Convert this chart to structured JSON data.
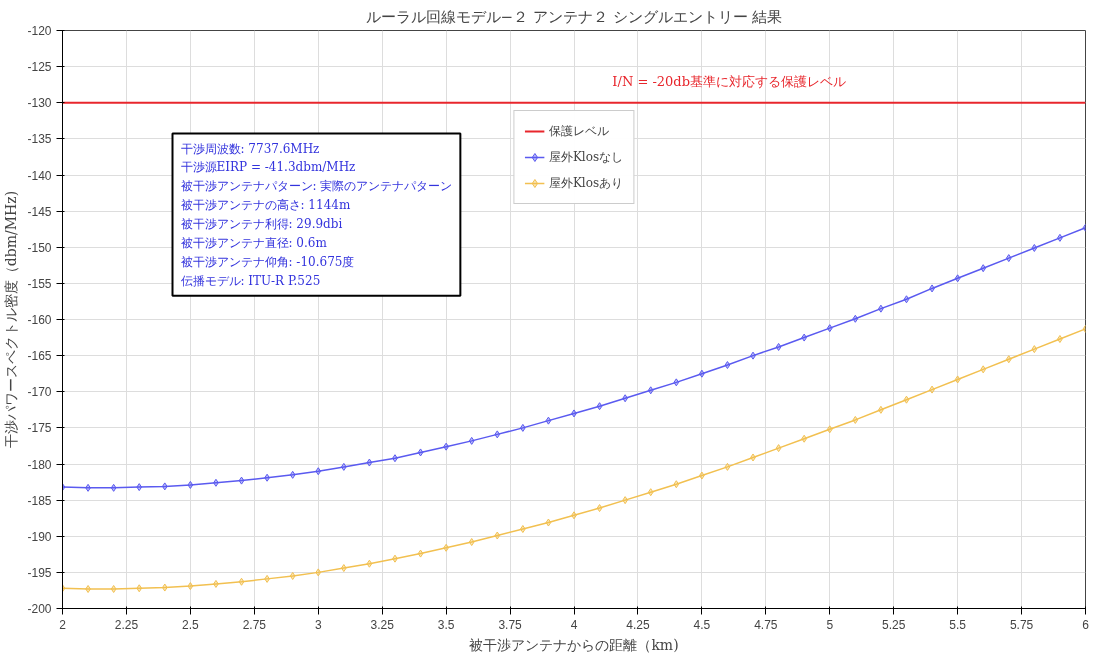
{
  "chart_data": {
    "type": "line",
    "title": "ルーラル回線モデル−２ アンテナ２ シングルエントリー 結果",
    "xlabel": "被干渉アンテナからの距離（km)",
    "ylabel": "干渉パワースペクトル密度（dbm/MHz)",
    "x": [
      2.0,
      2.1,
      2.2,
      2.3,
      2.4,
      2.5,
      2.6,
      2.7,
      2.8,
      2.9,
      3.0,
      3.1,
      3.2,
      3.3,
      3.4,
      3.5,
      3.6,
      3.7,
      3.8,
      3.9,
      4.0,
      4.1,
      4.2,
      4.3,
      4.4,
      4.5,
      4.6,
      4.7,
      4.8,
      4.9,
      5.0,
      5.1,
      5.2,
      5.3,
      5.4,
      5.5,
      5.6,
      5.7,
      5.8,
      5.9,
      6.0
    ],
    "series": [
      {
        "name": "保護レベル",
        "color": "#e8262c",
        "marker": "none",
        "x": [
          2,
          6
        ],
        "values": [
          -130,
          -130
        ]
      },
      {
        "name": "屋外Klosなし",
        "color": "#5a5af0",
        "marker": "diamond",
        "values": [
          -183.2,
          -183.3,
          -183.3,
          -183.2,
          -183.1,
          -182.9,
          -182.6,
          -182.3,
          -181.9,
          -181.5,
          -181.0,
          -180.4,
          -179.8,
          -179.2,
          -178.4,
          -177.6,
          -176.8,
          -175.9,
          -175.0,
          -174.0,
          -173.0,
          -172.0,
          -170.9,
          -169.8,
          -168.7,
          -167.5,
          -166.3,
          -165.0,
          -163.8,
          -162.5,
          -161.2,
          -159.9,
          -158.5,
          -157.2,
          -155.7,
          -154.3,
          -152.9,
          -151.5,
          -150.1,
          -148.7,
          -147.3
        ]
      },
      {
        "name": "屋外Klosあり",
        "color": "#f2c050",
        "marker": "diamond",
        "values": [
          -197.2,
          -197.3,
          -197.3,
          -197.2,
          -197.1,
          -196.9,
          -196.6,
          -196.3,
          -195.9,
          -195.5,
          -195.0,
          -194.4,
          -193.8,
          -193.1,
          -192.4,
          -191.6,
          -190.8,
          -189.9,
          -189.0,
          -188.1,
          -187.1,
          -186.1,
          -185.0,
          -183.9,
          -182.8,
          -181.6,
          -180.4,
          -179.1,
          -177.8,
          -176.5,
          -175.2,
          -173.9,
          -172.5,
          -171.1,
          -169.7,
          -168.3,
          -166.9,
          -165.5,
          -164.1,
          -162.7,
          -161.3
        ]
      }
    ],
    "annotations": [
      {
        "text": "I/N = -20db基準に対応する保護レベル",
        "x": 4.15,
        "y": -130
      },
      "干渉周波数: 7737.6MHz",
      "干渉源EIRP = -41.3dbm/MHz",
      "被干渉アンテナパターン: 実際のアンテナパターン",
      "被干渉アンテナの高さ: 1144m",
      "被干渉アンテナ利得: 29.9dbi",
      "被干渉アンテナ直径: 0.6m",
      "被干渉アンテナ仰角: -10.675度",
      "伝播モデル: ITU-R P.525"
    ],
    "xlim": [
      2,
      6
    ],
    "ylim": [
      -200,
      -120
    ],
    "xticks": [
      2,
      2.25,
      2.5,
      2.75,
      3,
      3.25,
      3.5,
      3.75,
      4,
      4.25,
      4.5,
      4.75,
      5,
      5.25,
      5.5,
      5.75,
      6
    ],
    "yticks": [
      -200,
      -195,
      -190,
      -185,
      -180,
      -175,
      -170,
      -165,
      -160,
      -155,
      -150,
      -145,
      -140,
      -135,
      -130,
      -125,
      -120
    ],
    "grid": true,
    "legend": "top"
  }
}
